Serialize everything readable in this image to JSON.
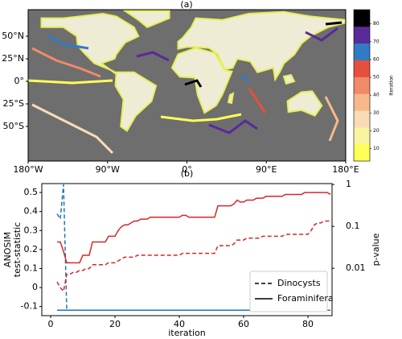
{
  "map": {
    "panel_label": "(a)",
    "lon_labels": [
      "180°W",
      "90°W",
      "0°",
      "90°E",
      "180°E"
    ],
    "lat_labels": [
      "50°N",
      "25°N",
      "0°",
      "25°S",
      "50°S"
    ],
    "colorbar": {
      "label": "Iteration",
      "lim": [
        3,
        88
      ],
      "ticks": [
        10,
        20,
        30,
        40,
        50,
        60,
        70,
        80
      ],
      "colors": [
        "#ffff55",
        "#f8f59e",
        "#f9dcb6",
        "#f7b98c",
        "#f18a68",
        "#e5503c",
        "#2f7cc2",
        "#5a2a98",
        "#000000"
      ]
    }
  },
  "chart_data": {
    "type": "line",
    "title": "(b)",
    "x_label": "iteration",
    "y_label": [
      "ANOSIM",
      "test-statistic"
    ],
    "y2_label": "p-value",
    "y_color": "#d62728",
    "y2_color": "#1f77b4",
    "y2_log": true,
    "legend": "lower right",
    "xlim": [
      -2.75,
      87.5
    ],
    "xticks": [
      0,
      20,
      40,
      60,
      80
    ],
    "ylim": [
      -0.148,
      0.547
    ],
    "yticks": [
      -0.1,
      0,
      0.1,
      0.2,
      0.3,
      0.4,
      0.5
    ],
    "y2lim": [
      0.00074,
      1.05
    ],
    "y2ticks": [
      0.01,
      0.1,
      1
    ],
    "x": [
      2,
      3,
      4,
      5,
      6,
      7,
      8,
      9,
      10,
      11,
      12,
      13,
      14,
      15,
      16,
      17,
      18,
      19,
      20,
      21,
      22,
      23,
      24,
      25,
      26,
      27,
      28,
      29,
      30,
      31,
      32,
      33,
      34,
      35,
      36,
      37,
      38,
      39,
      40,
      41,
      42,
      43,
      44,
      45,
      46,
      47,
      48,
      49,
      50,
      51,
      52,
      53,
      54,
      55,
      56,
      57,
      58,
      59,
      60,
      61,
      62,
      63,
      64,
      65,
      66,
      67,
      68,
      69,
      70,
      71,
      72,
      73,
      74,
      75,
      76,
      77,
      78,
      79,
      80,
      81,
      82,
      83,
      84,
      85,
      86,
      87
    ],
    "series": [
      {
        "name": "Dinocysts",
        "dashed": true,
        "values": [
          0.03,
          0.0,
          -0.02,
          0.07,
          0.07,
          0.08,
          0.08,
          0.09,
          0.09,
          0.1,
          0.1,
          0.12,
          0.12,
          0.12,
          0.12,
          0.12,
          0.13,
          0.13,
          0.13,
          0.14,
          0.15,
          0.16,
          0.16,
          0.16,
          0.16,
          0.17,
          0.17,
          0.17,
          0.17,
          0.17,
          0.17,
          0.17,
          0.17,
          0.17,
          0.17,
          0.17,
          0.17,
          0.17,
          0.17,
          0.18,
          0.18,
          0.18,
          0.18,
          0.18,
          0.18,
          0.18,
          0.18,
          0.18,
          0.18,
          0.18,
          0.22,
          0.22,
          0.22,
          0.22,
          0.22,
          0.23,
          0.25,
          0.25,
          0.25,
          0.26,
          0.26,
          0.26,
          0.26,
          0.26,
          0.27,
          0.27,
          0.27,
          0.27,
          0.27,
          0.27,
          0.27,
          0.28,
          0.28,
          0.28,
          0.28,
          0.28,
          0.28,
          0.28,
          0.28,
          0.3,
          0.33,
          0.34,
          0.34,
          0.35,
          0.35,
          0.35
        ],
        "p_values": [
          0.2,
          0.15,
          1,
          0.001,
          0.001,
          0.001,
          0.001,
          0.001,
          0.001,
          0.001,
          0.001,
          0.001,
          0.001,
          0.001,
          0.001,
          0.001,
          0.001,
          0.001,
          0.001,
          0.001,
          0.001,
          0.001,
          0.001,
          0.001,
          0.001,
          0.001,
          0.001,
          0.001,
          0.001,
          0.001,
          0.001,
          0.001,
          0.001,
          0.001,
          0.001,
          0.001,
          0.001,
          0.001,
          0.001,
          0.001,
          0.001,
          0.001,
          0.001,
          0.001,
          0.001,
          0.001,
          0.001,
          0.001,
          0.001,
          0.001,
          0.001,
          0.001,
          0.001,
          0.001,
          0.001,
          0.001,
          0.001,
          0.001,
          0.001,
          0.001,
          0.001,
          0.001,
          0.001,
          0.001,
          0.001,
          0.001,
          0.001,
          0.001,
          0.001,
          0.001,
          0.001,
          0.001,
          0.001,
          0.001,
          0.001,
          0.001,
          0.001,
          0.001,
          0.001,
          0.001,
          0.001,
          0.001,
          0.001,
          0.001,
          0.001,
          0.001
        ]
      },
      {
        "name": "Foraminifera",
        "dashed": false,
        "values": [
          0.24,
          0.24,
          0.19,
          0.13,
          0.13,
          0.13,
          0.13,
          0.13,
          0.17,
          0.17,
          0.17,
          0.24,
          0.24,
          0.24,
          0.24,
          0.24,
          0.27,
          0.27,
          0.27,
          0.3,
          0.32,
          0.33,
          0.33,
          0.34,
          0.35,
          0.35,
          0.36,
          0.36,
          0.36,
          0.37,
          0.37,
          0.37,
          0.37,
          0.37,
          0.37,
          0.37,
          0.37,
          0.37,
          0.37,
          0.38,
          0.38,
          0.37,
          0.37,
          0.37,
          0.37,
          0.37,
          0.37,
          0.37,
          0.37,
          0.37,
          0.43,
          0.43,
          0.43,
          0.43,
          0.43,
          0.44,
          0.46,
          0.45,
          0.45,
          0.46,
          0.46,
          0.46,
          0.47,
          0.47,
          0.47,
          0.48,
          0.48,
          0.48,
          0.48,
          0.48,
          0.48,
          0.49,
          0.49,
          0.49,
          0.49,
          0.49,
          0.49,
          0.5,
          0.5,
          0.5,
          0.5,
          0.5,
          0.5,
          0.5,
          0.5,
          0.49
        ],
        "p_values": [
          0.001,
          0.001,
          0.001,
          0.001,
          0.001,
          0.001,
          0.001,
          0.001,
          0.001,
          0.001,
          0.001,
          0.001,
          0.001,
          0.001,
          0.001,
          0.001,
          0.001,
          0.001,
          0.001,
          0.001,
          0.001,
          0.001,
          0.001,
          0.001,
          0.001,
          0.001,
          0.001,
          0.001,
          0.001,
          0.001,
          0.001,
          0.001,
          0.001,
          0.001,
          0.001,
          0.001,
          0.001,
          0.001,
          0.001,
          0.001,
          0.001,
          0.001,
          0.001,
          0.001,
          0.001,
          0.001,
          0.001,
          0.001,
          0.001,
          0.001,
          0.001,
          0.001,
          0.001,
          0.001,
          0.001,
          0.001,
          0.001,
          0.001,
          0.001,
          0.001,
          0.001,
          0.001,
          0.001,
          0.001,
          0.001,
          0.001,
          0.001,
          0.001,
          0.001,
          0.001,
          0.001,
          0.001,
          0.001,
          0.001,
          0.001,
          0.001,
          0.001,
          0.001,
          0.001,
          0.001,
          0.001,
          0.001,
          0.001,
          0.001,
          0.001,
          0.001
        ]
      }
    ]
  }
}
